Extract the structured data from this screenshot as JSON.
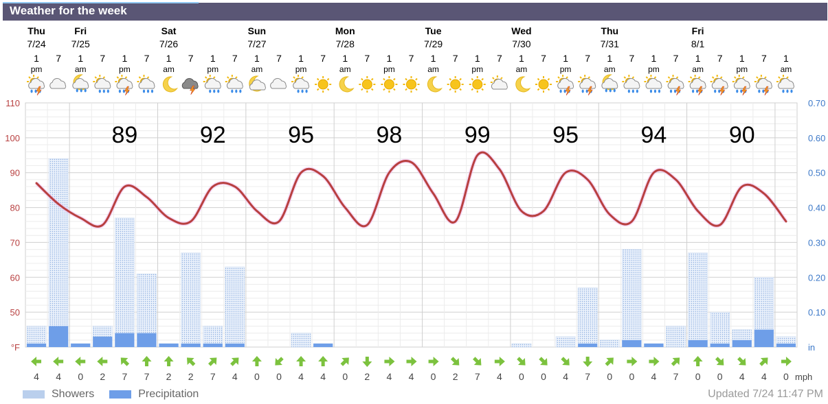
{
  "title": "Weather for the week",
  "days": [
    {
      "name": "Thu",
      "date": "7/24"
    },
    {
      "name": "Fri",
      "date": "7/25"
    },
    {
      "name": "Sat",
      "date": "7/26"
    },
    {
      "name": "Sun",
      "date": "7/27"
    },
    {
      "name": "Mon",
      "date": "7/28"
    },
    {
      "name": "Tue",
      "date": "7/29"
    },
    {
      "name": "Wed",
      "date": "7/30"
    },
    {
      "name": "Thu",
      "date": "7/31"
    },
    {
      "name": "Fri",
      "date": "8/1"
    }
  ],
  "time_labels": [
    [
      "1",
      "pm"
    ],
    [
      "7",
      ""
    ],
    [
      "1",
      "am"
    ],
    [
      "7",
      ""
    ],
    [
      "1",
      "pm"
    ],
    [
      "7",
      ""
    ],
    [
      "1",
      "am"
    ],
    [
      "7",
      ""
    ],
    [
      "1",
      "pm"
    ],
    [
      "7",
      ""
    ],
    [
      "1",
      "am"
    ],
    [
      "7",
      ""
    ],
    [
      "1",
      "pm"
    ],
    [
      "7",
      ""
    ],
    [
      "1",
      "am"
    ],
    [
      "7",
      ""
    ],
    [
      "1",
      "pm"
    ],
    [
      "7",
      ""
    ],
    [
      "1",
      "am"
    ],
    [
      "7",
      ""
    ],
    [
      "1",
      "pm"
    ],
    [
      "7",
      ""
    ],
    [
      "1",
      "am"
    ],
    [
      "7",
      ""
    ],
    [
      "1",
      "pm"
    ],
    [
      "7",
      ""
    ],
    [
      "1",
      "am"
    ],
    [
      "7",
      ""
    ],
    [
      "1",
      "pm"
    ],
    [
      "7",
      ""
    ],
    [
      "1",
      "am"
    ],
    [
      "7",
      ""
    ],
    [
      "1",
      "pm"
    ],
    [
      "7",
      ""
    ],
    [
      "1",
      "am"
    ]
  ],
  "weather_icons": [
    "thunder-rain",
    "cloudy",
    "night-rain",
    "cloud-rain",
    "thunder-rain",
    "cloud-rain",
    "moon",
    "thunderstorm",
    "cloud-rain",
    "cloud-rain",
    "night-cloudy",
    "cloudy",
    "cloud-rain",
    "sun",
    "moon",
    "sun",
    "sun",
    "sun",
    "moon",
    "sun",
    "sun",
    "partly-cloudy",
    "moon",
    "sun",
    "thunder-rain",
    "thunder-rain",
    "night-rain",
    "cloud-rain",
    "cloud-rain",
    "thunder-rain",
    "thunder-rain",
    "thunder-rain",
    "thunder-rain",
    "thunder-rain",
    "cloud-rain"
  ],
  "chart_data": {
    "type": "line",
    "temperature_unit": "°F",
    "precip_unit": "in",
    "wind_unit": "mph",
    "left_axis": {
      "ticks": [
        110,
        100,
        90,
        80,
        70,
        60,
        50
      ],
      "min": 40,
      "max": 110,
      "bottom_label": "°F"
    },
    "right_axis": {
      "ticks": [
        "0.70",
        "0.60",
        "0.50",
        "0.40",
        "0.30",
        "0.20",
        "0.10"
      ],
      "min": 0,
      "max": 0.7,
      "bottom_label": "in"
    },
    "daily_highs": [
      89,
      92,
      95,
      98,
      99,
      95,
      94,
      90
    ],
    "temperature_series": [
      87,
      81,
      77,
      75,
      86,
      83,
      77,
      76,
      86,
      86,
      79,
      76,
      90,
      89,
      80,
      75,
      90,
      93,
      84,
      76,
      95,
      91,
      79,
      79,
      90,
      88,
      78,
      76,
      90,
      88,
      79,
      75,
      86,
      84,
      76
    ],
    "showers": [
      0.06,
      0.54,
      0.01,
      0.06,
      0.37,
      0.21,
      0.01,
      0.27,
      0.06,
      0.23,
      0,
      0,
      0.04,
      0.01,
      0,
      0,
      0,
      0,
      0,
      0,
      0,
      0,
      0.01,
      0,
      0.03,
      0.17,
      0.02,
      0.28,
      0.01,
      0.06,
      0.27,
      0.1,
      0.05,
      0.2,
      0.03
    ],
    "precipitation": [
      0.01,
      0.06,
      0.01,
      0.03,
      0.04,
      0.04,
      0.01,
      0.01,
      0.01,
      0.01,
      0,
      0,
      0,
      0.01,
      0,
      0,
      0,
      0,
      0,
      0,
      0,
      0,
      0,
      0,
      0,
      0.01,
      0,
      0.02,
      0.01,
      0,
      0.02,
      0.01,
      0.02,
      0.05,
      0.01
    ],
    "wind_direction_deg": [
      270,
      270,
      270,
      270,
      315,
      0,
      0,
      315,
      45,
      45,
      0,
      225,
      0,
      0,
      45,
      180,
      90,
      90,
      90,
      135,
      135,
      90,
      135,
      135,
      135,
      180,
      45,
      90,
      90,
      45,
      0,
      135,
      135,
      45,
      90
    ],
    "wind_speed": [
      4,
      4,
      0,
      2,
      7,
      7,
      2,
      2,
      7,
      4,
      0,
      0,
      4,
      4,
      0,
      2,
      4,
      4,
      0,
      2,
      7,
      4,
      0,
      0,
      4,
      7,
      0,
      0,
      4,
      7,
      0,
      0,
      4,
      4,
      0
    ]
  },
  "legend": {
    "showers": "Showers",
    "precipitation": "Precipitation"
  },
  "updated": "Updated 7/24 11:47 PM",
  "colors": {
    "title_bg": "#5a5675",
    "temp_line": "#b84040",
    "precip_bar": "#6e9ee8",
    "shower_fill": "#eaf1fb",
    "left_axis_text": "#b84040",
    "right_axis_text": "#3c78c8",
    "wind_arrow": "#7cc23e"
  }
}
